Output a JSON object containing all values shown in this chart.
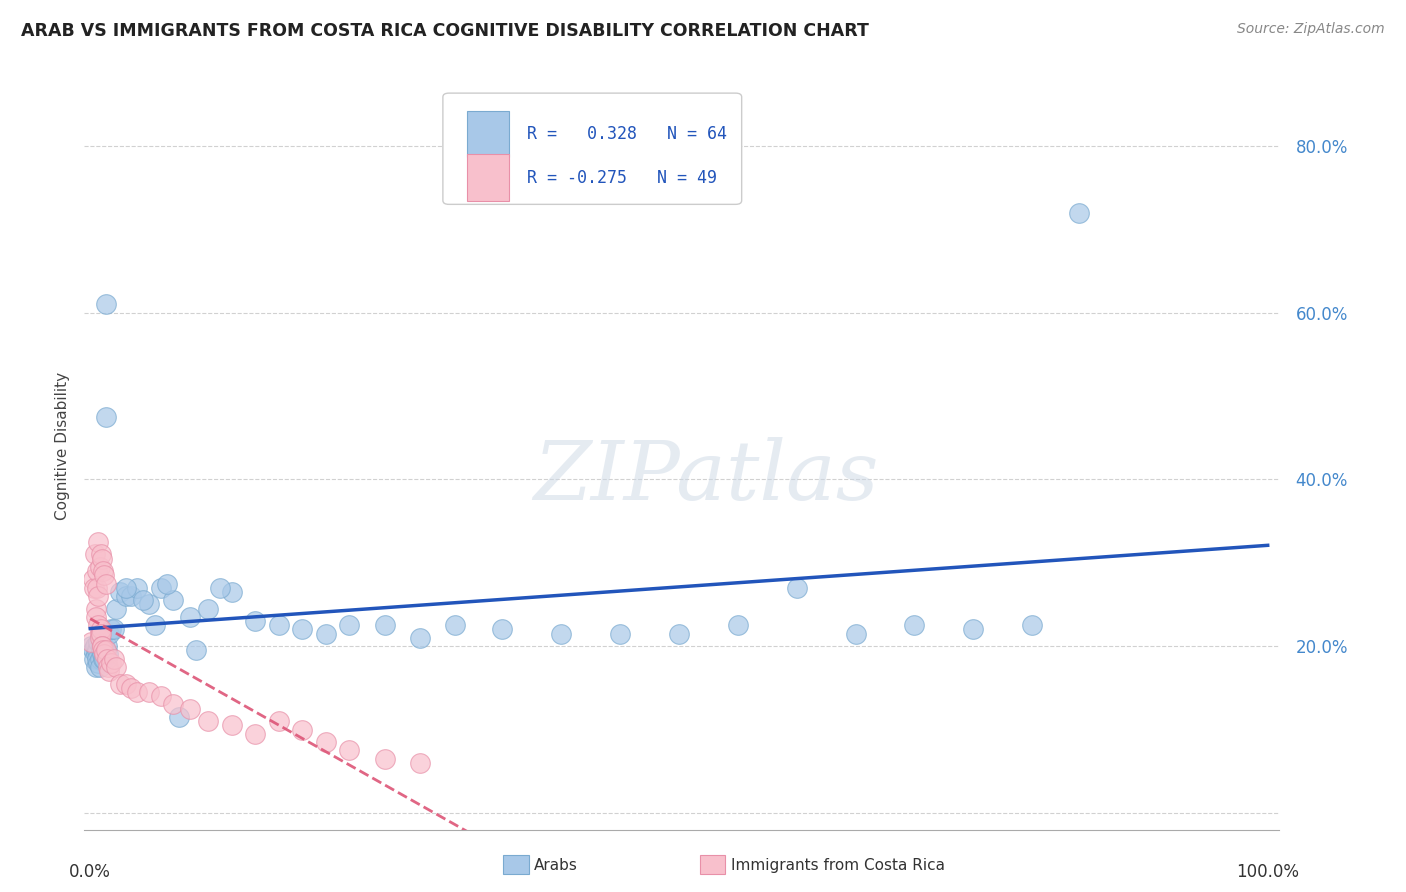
{
  "title": "ARAB VS IMMIGRANTS FROM COSTA RICA COGNITIVE DISABILITY CORRELATION CHART",
  "source": "Source: ZipAtlas.com",
  "ylabel": "Cognitive Disability",
  "arab_R": 0.328,
  "arab_N": 64,
  "immigrant_R": -0.275,
  "immigrant_N": 49,
  "arab_color": "#a8c8e8",
  "arab_edge_color": "#7aaad0",
  "immigrant_color": "#f8c0cc",
  "immigrant_edge_color": "#e890a8",
  "arab_line_color": "#2255bb",
  "immigrant_line_color": "#dd5577",
  "background_color": "#ffffff",
  "grid_color": "#cccccc",
  "ytick_color": "#4488cc",
  "arab_scatter_x": [
    0.001,
    0.002,
    0.003,
    0.004,
    0.005,
    0.005,
    0.006,
    0.006,
    0.007,
    0.007,
    0.008,
    0.008,
    0.009,
    0.009,
    0.01,
    0.01,
    0.011,
    0.011,
    0.012,
    0.012,
    0.013,
    0.013,
    0.014,
    0.015,
    0.016,
    0.018,
    0.02,
    0.022,
    0.025,
    0.03,
    0.035,
    0.04,
    0.05,
    0.06,
    0.07,
    0.085,
    0.1,
    0.12,
    0.14,
    0.16,
    0.18,
    0.2,
    0.22,
    0.25,
    0.28,
    0.31,
    0.35,
    0.4,
    0.45,
    0.5,
    0.55,
    0.6,
    0.65,
    0.7,
    0.75,
    0.8,
    0.03,
    0.045,
    0.055,
    0.065,
    0.075,
    0.09,
    0.84,
    0.11
  ],
  "arab_scatter_y": [
    0.2,
    0.195,
    0.185,
    0.2,
    0.175,
    0.19,
    0.195,
    0.185,
    0.18,
    0.205,
    0.185,
    0.175,
    0.2,
    0.195,
    0.19,
    0.205,
    0.195,
    0.185,
    0.2,
    0.185,
    0.61,
    0.475,
    0.2,
    0.19,
    0.215,
    0.22,
    0.22,
    0.245,
    0.265,
    0.26,
    0.26,
    0.27,
    0.25,
    0.27,
    0.255,
    0.235,
    0.245,
    0.265,
    0.23,
    0.225,
    0.22,
    0.215,
    0.225,
    0.225,
    0.21,
    0.225,
    0.22,
    0.215,
    0.215,
    0.215,
    0.225,
    0.27,
    0.215,
    0.225,
    0.22,
    0.225,
    0.27,
    0.255,
    0.225,
    0.275,
    0.115,
    0.195,
    0.72,
    0.27
  ],
  "immigrant_scatter_x": [
    0.001,
    0.002,
    0.003,
    0.004,
    0.005,
    0.005,
    0.006,
    0.006,
    0.007,
    0.007,
    0.008,
    0.008,
    0.009,
    0.009,
    0.01,
    0.01,
    0.011,
    0.012,
    0.013,
    0.014,
    0.015,
    0.016,
    0.018,
    0.02,
    0.022,
    0.025,
    0.03,
    0.035,
    0.04,
    0.05,
    0.06,
    0.07,
    0.085,
    0.1,
    0.12,
    0.14,
    0.16,
    0.18,
    0.2,
    0.22,
    0.25,
    0.28,
    0.007,
    0.008,
    0.009,
    0.01,
    0.011,
    0.012,
    0.013
  ],
  "immigrant_scatter_y": [
    0.205,
    0.28,
    0.27,
    0.31,
    0.245,
    0.235,
    0.29,
    0.27,
    0.26,
    0.225,
    0.215,
    0.21,
    0.22,
    0.215,
    0.2,
    0.2,
    0.195,
    0.19,
    0.195,
    0.185,
    0.175,
    0.17,
    0.18,
    0.185,
    0.175,
    0.155,
    0.155,
    0.15,
    0.145,
    0.145,
    0.14,
    0.13,
    0.125,
    0.11,
    0.105,
    0.095,
    0.11,
    0.1,
    0.085,
    0.075,
    0.065,
    0.06,
    0.325,
    0.295,
    0.31,
    0.305,
    0.29,
    0.285,
    0.275
  ],
  "xlim": [
    -0.005,
    1.01
  ],
  "ylim": [
    -0.02,
    0.9
  ],
  "yticks": [
    0.0,
    0.2,
    0.4,
    0.6,
    0.8
  ],
  "ytick_labels": [
    "",
    "20.0%",
    "40.0%",
    "60.0%",
    "80.0%"
  ]
}
